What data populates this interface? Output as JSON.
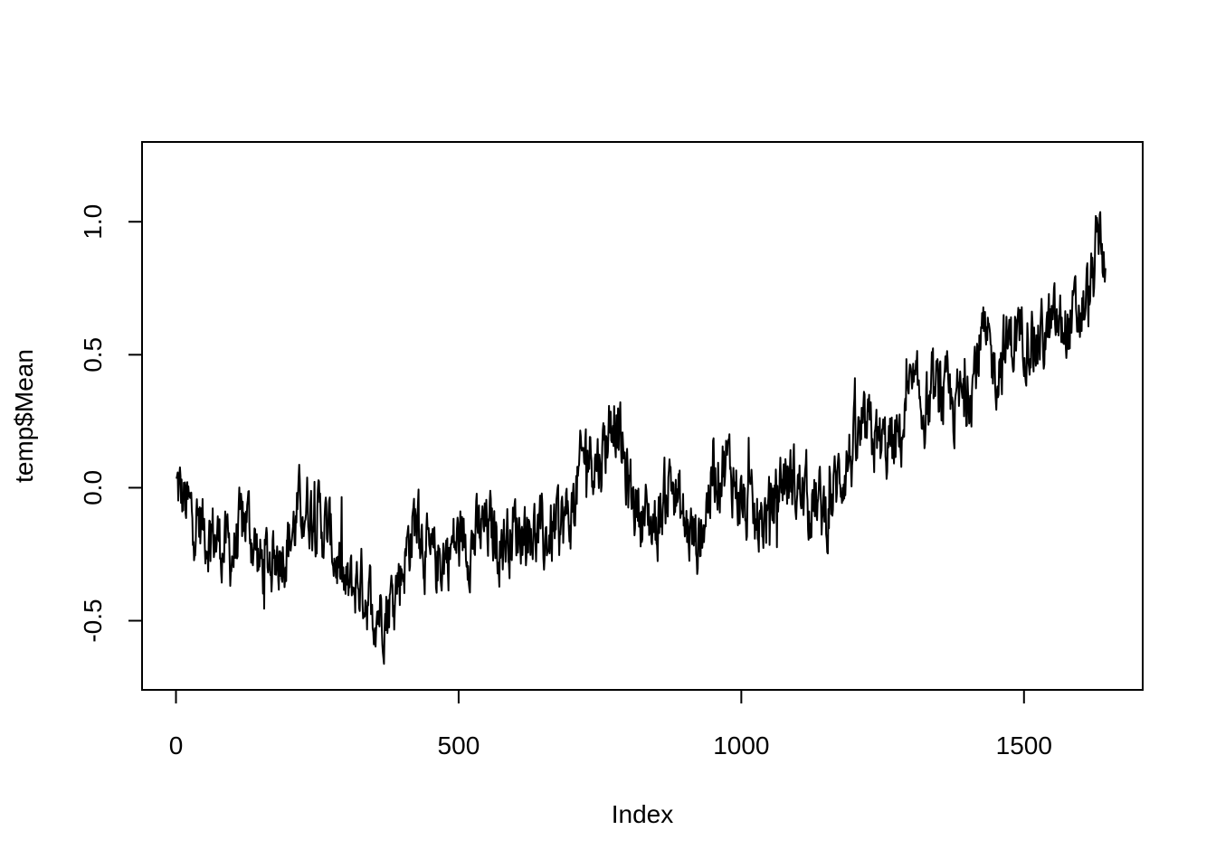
{
  "chart_data": {
    "type": "line",
    "title": "",
    "xlabel": "Index",
    "ylabel": "temp$Mean",
    "xlim": [
      -60,
      1710
    ],
    "ylim": [
      -0.76,
      1.3
    ],
    "x_ticks": [
      0,
      500,
      1000,
      1500
    ],
    "x_tick_labels": [
      "0",
      "500",
      "1000",
      "1500"
    ],
    "y_ticks": [
      -0.5,
      0.0,
      0.5,
      1.0
    ],
    "y_tick_labels": [
      "-0.5",
      "0.0",
      "0.5",
      "1.0"
    ],
    "grid": false,
    "legend": "none",
    "line_color": "#000000",
    "series": [
      {
        "x": [
          1,
          25,
          50,
          75,
          100,
          125,
          150,
          175,
          200,
          225,
          250,
          275,
          300,
          325,
          350,
          375,
          400,
          425,
          450,
          475,
          500,
          525,
          550,
          575,
          600,
          625,
          650,
          675,
          700,
          725,
          750,
          775,
          800,
          825,
          850,
          875,
          900,
          925,
          950,
          975,
          1000,
          1025,
          1050,
          1075,
          1100,
          1125,
          1150,
          1175,
          1200,
          1225,
          1250,
          1275,
          1300,
          1325,
          1350,
          1375,
          1400,
          1425,
          1450,
          1475,
          1500,
          1525,
          1550,
          1575,
          1600,
          1620,
          1635,
          1644
        ],
        "values": [
          0.0,
          -0.1,
          -0.15,
          -0.2,
          -0.25,
          -0.1,
          -0.3,
          -0.25,
          -0.2,
          -0.05,
          -0.1,
          -0.2,
          -0.4,
          -0.35,
          -0.45,
          -0.45,
          -0.3,
          -0.1,
          -0.3,
          -0.25,
          -0.2,
          -0.2,
          -0.15,
          -0.2,
          -0.15,
          -0.15,
          -0.2,
          -0.15,
          -0.1,
          0.15,
          0.1,
          0.3,
          0.0,
          -0.1,
          -0.15,
          0.05,
          -0.15,
          -0.2,
          0.05,
          0.1,
          -0.05,
          -0.15,
          -0.1,
          0.05,
          0.0,
          -0.05,
          -0.1,
          0.05,
          0.15,
          0.2,
          0.15,
          0.15,
          0.35,
          0.3,
          0.35,
          0.3,
          0.35,
          0.55,
          0.45,
          0.55,
          0.6,
          0.55,
          0.6,
          0.6,
          0.65,
          0.75,
          1.0,
          0.8
        ]
      }
    ]
  }
}
